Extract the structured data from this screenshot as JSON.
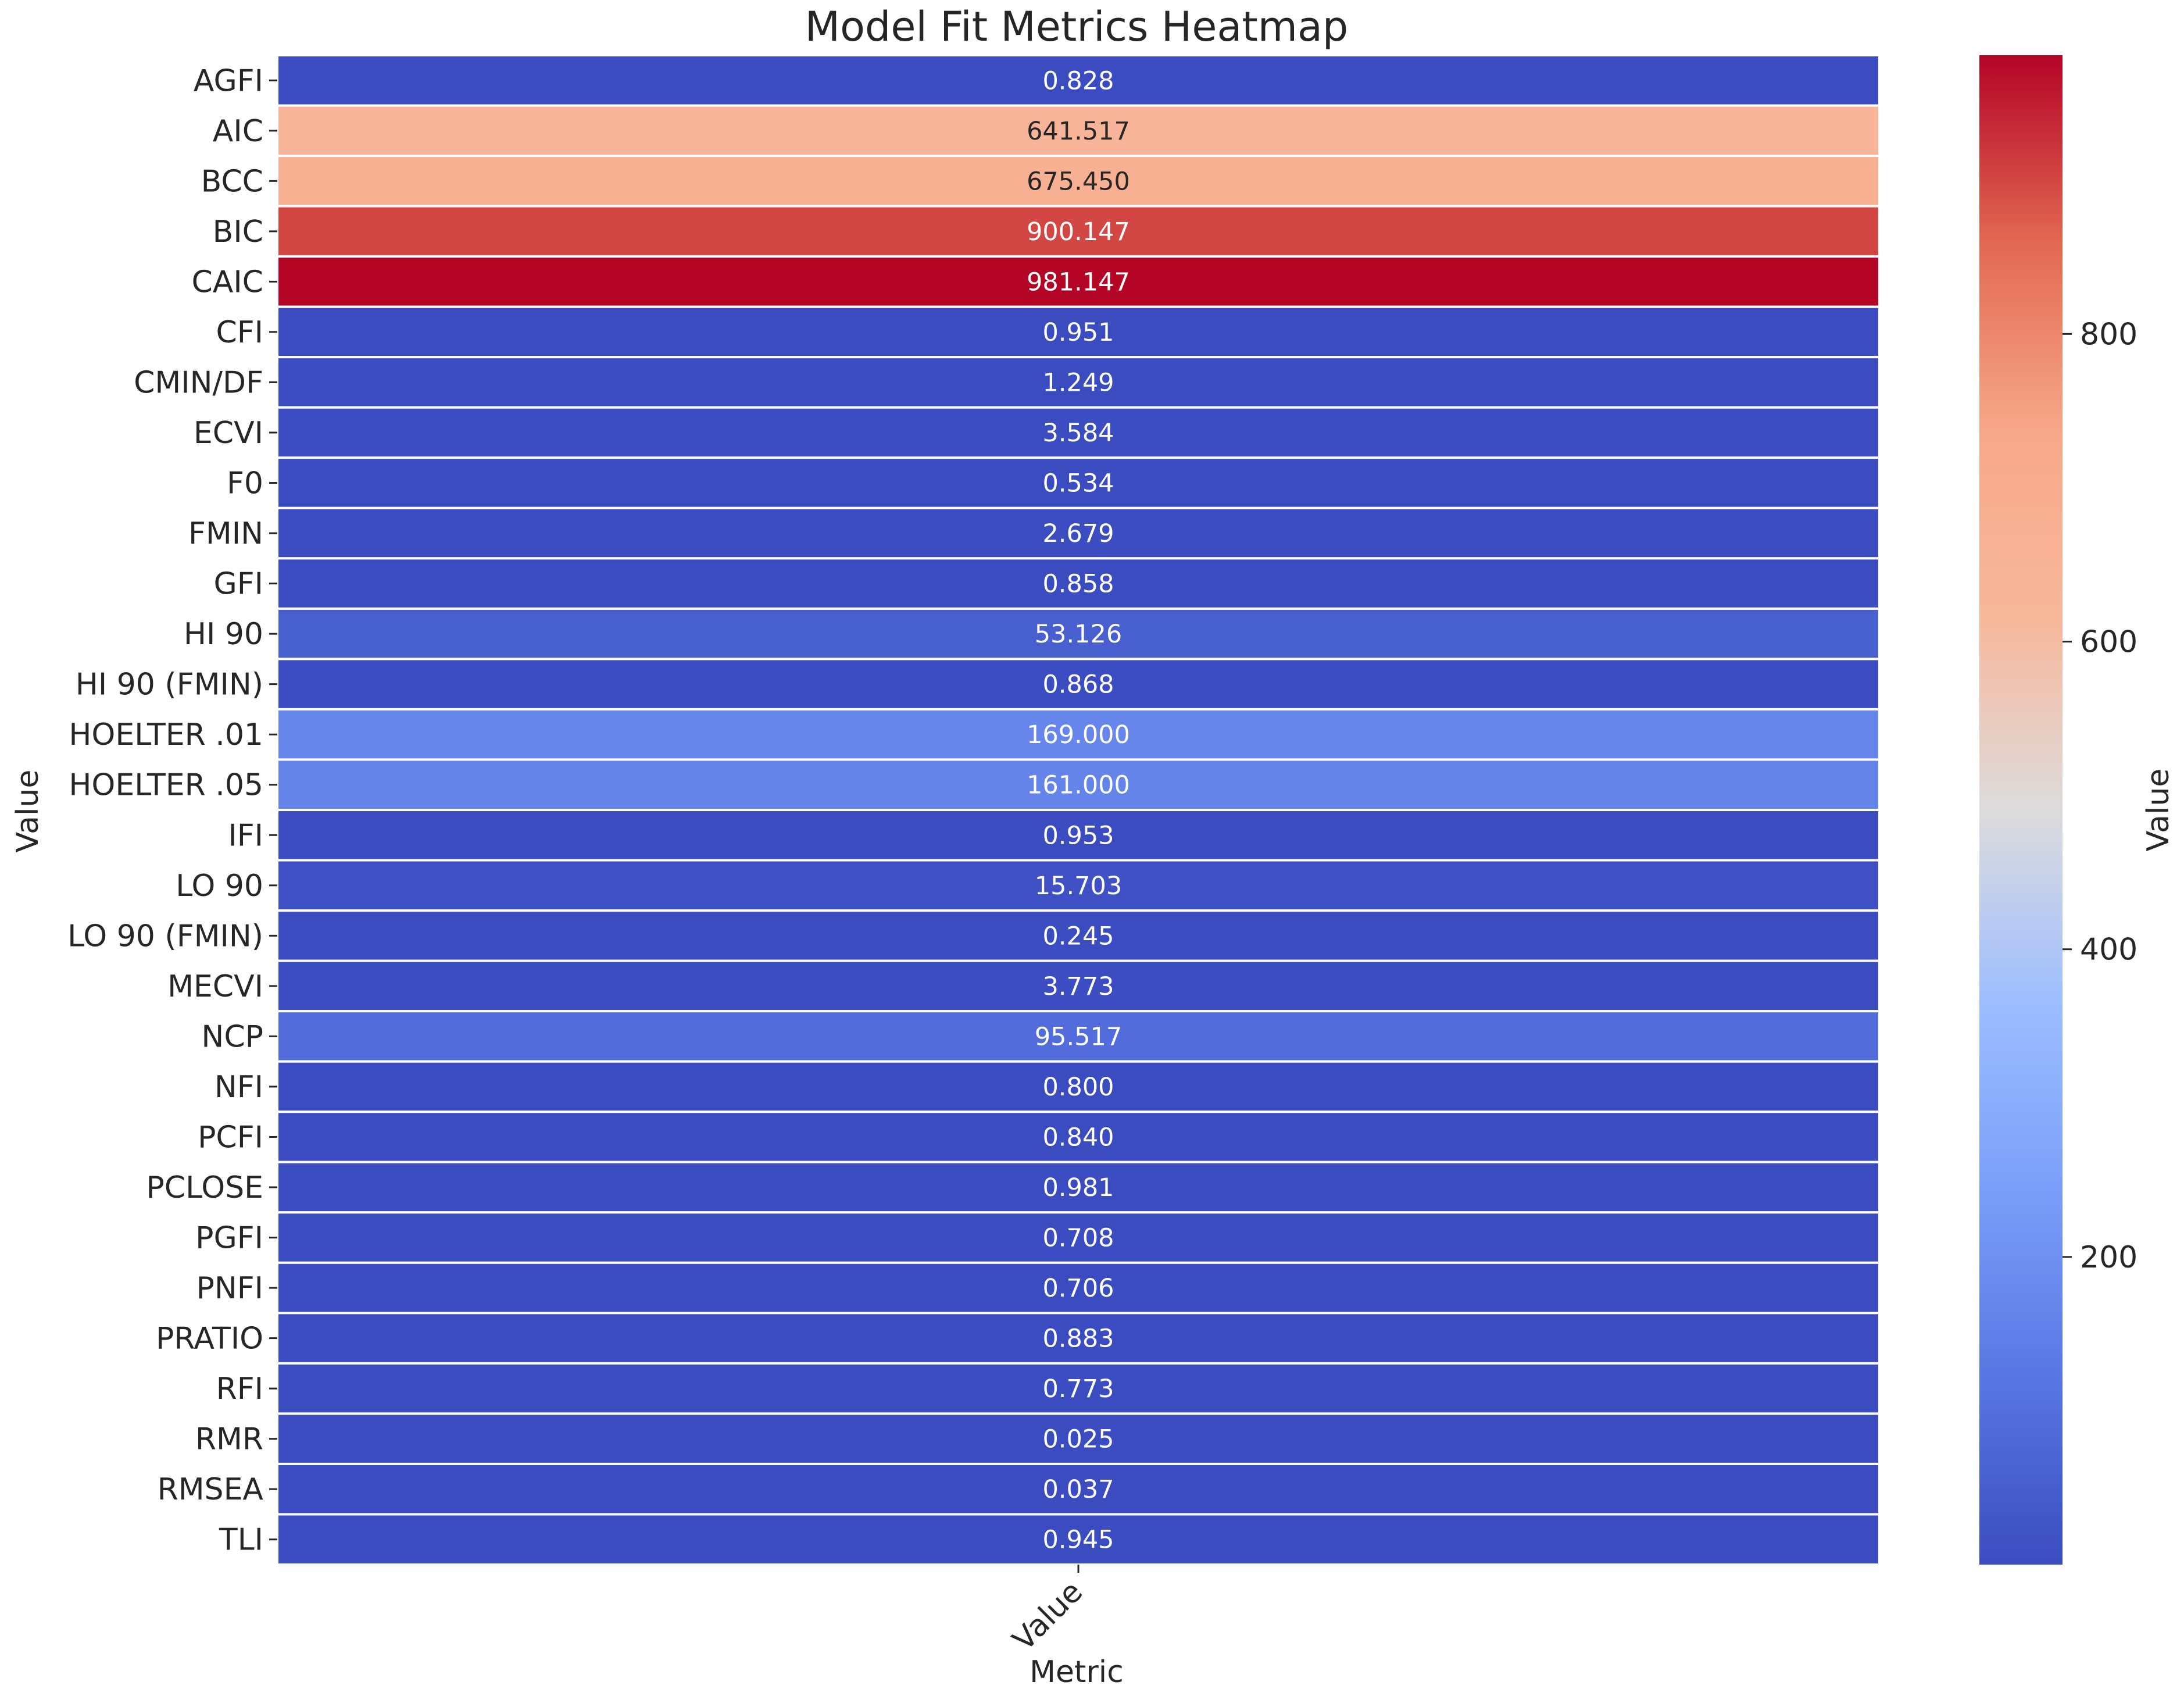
{
  "chart_data": {
    "type": "heatmap",
    "title": "Model Fit Metrics Heatmap",
    "xlabel": "Metric",
    "ylabel": "Value",
    "columns": [
      "Value"
    ],
    "rows": [
      "AGFI",
      "AIC",
      "BCC",
      "BIC",
      "CAIC",
      "CFI",
      "CMIN/DF",
      "ECVI",
      "F0",
      "FMIN",
      "GFI",
      "HI 90",
      "HI 90 (FMIN)",
      "HOELTER .01",
      "HOELTER .05",
      "IFI",
      "LO 90",
      "LO 90 (FMIN)",
      "MECVI",
      "NCP",
      "NFI",
      "PCFI",
      "PCLOSE",
      "PGFI",
      "PNFI",
      "PRATIO",
      "RFI",
      "RMR",
      "RMSEA",
      "TLI"
    ],
    "values": [
      0.828,
      641.517,
      675.45,
      900.147,
      981.147,
      0.951,
      1.249,
      3.584,
      0.534,
      2.679,
      0.858,
      53.126,
      0.868,
      169.0,
      161.0,
      0.953,
      15.703,
      0.245,
      3.773,
      95.517,
      0.8,
      0.84,
      0.981,
      0.708,
      0.706,
      0.883,
      0.773,
      0.025,
      0.037,
      0.945
    ],
    "value_labels": [
      "0.828",
      "641.517",
      "675.450",
      "900.147",
      "981.147",
      "0.951",
      "1.249",
      "3.584",
      "0.534",
      "2.679",
      "0.858",
      "53.126",
      "0.868",
      "169.000",
      "161.000",
      "0.953",
      "15.703",
      "0.245",
      "3.773",
      "95.517",
      "0.800",
      "0.840",
      "0.981",
      "0.708",
      "0.706",
      "0.883",
      "0.773",
      "0.025",
      "0.037",
      "0.945"
    ],
    "colormap": "coolwarm",
    "color_range": [
      0.025,
      981.147
    ],
    "colorbar": {
      "label": "Value",
      "ticks": [
        200,
        400,
        600,
        800
      ],
      "tick_labels": [
        "200",
        "400",
        "600",
        "800"
      ]
    },
    "grid": false
  }
}
